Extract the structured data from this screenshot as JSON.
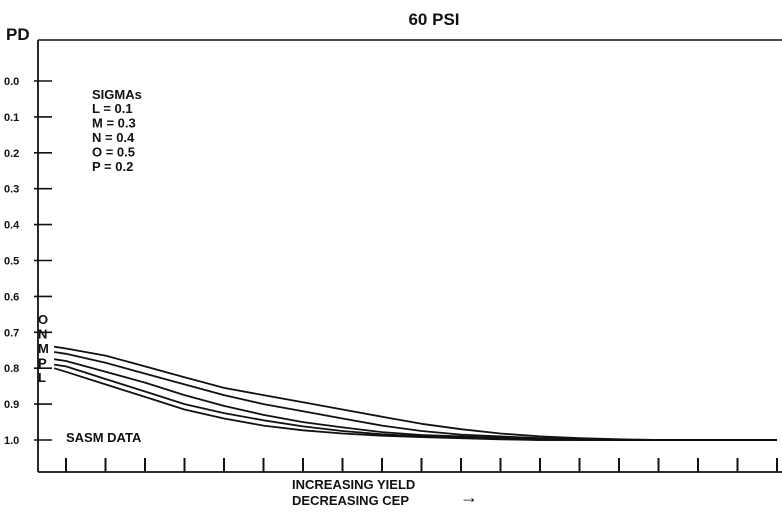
{
  "chart_data": {
    "type": "line",
    "title": "60 PSI",
    "ylabel": "PD",
    "xlabel_lines": [
      "INCREASING YIELD",
      "DECREASING CEP"
    ],
    "x_arrow": "→",
    "yticks": [
      "0.0",
      "0.1",
      "0.2",
      "0.3",
      "0.4",
      "0.5",
      "0.6",
      "0.7",
      "0.8",
      "0.9",
      "1.0"
    ],
    "ylim": [
      -0.1,
      1.1
    ],
    "y_inverted": true,
    "x_ticks_count": 19,
    "xlim": [
      0,
      19
    ],
    "grid": false,
    "legend": {
      "title": "SIGMAs",
      "entries": [
        "L = 0.1",
        "M = 0.3",
        "N = 0.4",
        "O = 0.5",
        "P = 0.2"
      ],
      "placement": "top-left"
    },
    "annotation": "SASM DATA",
    "x": [
      0.7,
      1,
      2,
      3,
      4,
      5,
      6,
      7,
      8,
      9,
      10,
      11,
      12,
      13,
      14,
      15,
      16,
      17,
      18,
      19
    ],
    "series": [
      {
        "name": "O",
        "values": [
          0.74,
          0.745,
          0.765,
          0.795,
          0.825,
          0.855,
          0.875,
          0.895,
          0.915,
          0.935,
          0.955,
          0.97,
          0.982,
          0.99,
          0.995,
          0.998,
          1.0,
          1.0,
          1.0,
          1.0
        ]
      },
      {
        "name": "N",
        "values": [
          0.755,
          0.76,
          0.785,
          0.815,
          0.845,
          0.875,
          0.9,
          0.92,
          0.94,
          0.96,
          0.975,
          0.985,
          0.99,
          0.995,
          0.998,
          1.0,
          1.0,
          1.0,
          1.0,
          1.0
        ]
      },
      {
        "name": "M",
        "values": [
          0.775,
          0.78,
          0.81,
          0.84,
          0.875,
          0.905,
          0.93,
          0.95,
          0.965,
          0.978,
          0.986,
          0.99,
          0.994,
          0.997,
          1.0,
          1.0,
          1.0,
          1.0,
          1.0,
          1.0
        ]
      },
      {
        "name": "P",
        "values": [
          0.79,
          0.795,
          0.83,
          0.865,
          0.9,
          0.925,
          0.945,
          0.962,
          0.975,
          0.984,
          0.99,
          0.994,
          0.997,
          1.0,
          1.0,
          1.0,
          1.0,
          1.0,
          1.0,
          1.0
        ]
      },
      {
        "name": "L",
        "values": [
          0.8,
          0.81,
          0.845,
          0.88,
          0.915,
          0.94,
          0.96,
          0.973,
          0.982,
          0.988,
          0.992,
          0.995,
          0.998,
          1.0,
          1.0,
          1.0,
          1.0,
          1.0,
          1.0,
          1.0
        ]
      }
    ]
  }
}
